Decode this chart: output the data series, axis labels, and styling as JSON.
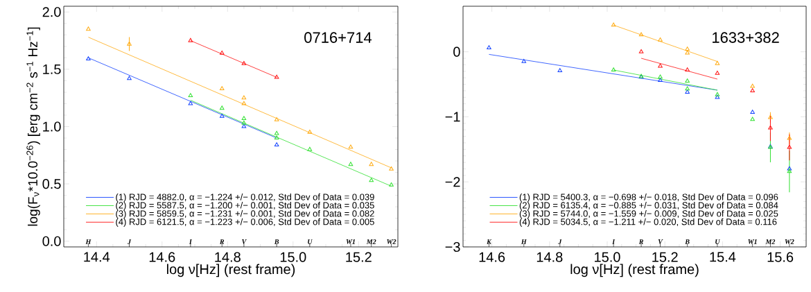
{
  "chart_data": [
    {
      "type": "scatter",
      "title": "0716+714",
      "xlabel": "log ν[Hz] (rest frame)",
      "ylabel": "log(F$_{ν}$*10.0$^{−26}$) [erg cm$^{−2}$ s$^{−1}$ Hz$^{−1}$]",
      "xlim": [
        14.3,
        15.32
      ],
      "ylim": [
        -0.05,
        2.05
      ],
      "xticks": [
        14.4,
        14.6,
        14.8,
        {
          "value": 15.0,
          "label": "15.0"
        },
        15.2
      ],
      "yticks": [
        {
          "value": 0,
          "label": "0.0"
        },
        0.5,
        {
          "value": 1,
          "label": "1.0"
        },
        1.5,
        {
          "value": 2,
          "label": "2.0"
        }
      ],
      "annotations": [
        "H",
        "J",
        "I",
        "R",
        "V",
        "B",
        "U",
        "W1",
        "M2",
        "W2"
      ],
      "legend": "bottom",
      "series": [
        {
          "type": "line",
          "marker": "none",
          "name": "(1) RJD = 4882.0, α = −1.224 +/− 0.012, Std Dev of Data = 0.039",
          "color": "#1040ff",
          "x": [
            14.375,
            14.95
          ],
          "values": [
            1.6,
            0.9
          ]
        },
        {
          "type": "line",
          "marker": "none",
          "name": "(2) RJD = 5587.5, α = −1.200 +/− 0.001, Std Dev of Data = 0.035",
          "color": "#30e030",
          "x": [
            14.687,
            15.3
          ],
          "values": [
            1.23,
            0.48
          ]
        },
        {
          "type": "line",
          "marker": "none",
          "name": "(3) RJD = 5859.5, α = −1.231 +/− 0.001, Std Dev of Data = 0.082",
          "color": "#ffaa10",
          "x": [
            14.375,
            15.3
          ],
          "values": [
            1.78,
            0.64
          ]
        },
        {
          "type": "line",
          "marker": "none",
          "name": "(4) RJD = 6121.5, α = −1.223 +/− 0.006, Std Dev of Data = 0.005",
          "color": "#ff1010",
          "x": [
            14.687,
            14.95
          ],
          "values": [
            1.75,
            1.43
          ]
        },
        {
          "marker": "triangle",
          "color": "#1040ff",
          "x": [
            14.375,
            14.5,
            14.687,
            14.783,
            14.85,
            14.95
          ],
          "values": [
            1.59,
            1.42,
            1.2,
            1.09,
            1.0,
            0.84
          ]
        },
        {
          "marker": "triangle",
          "color": "#30e030",
          "x": [
            14.687,
            14.783,
            14.85,
            14.85,
            14.95,
            14.95,
            15.051,
            15.176,
            15.239,
            15.3
          ],
          "values": [
            1.27,
            1.16,
            1.07,
            1.03,
            0.94,
            0.9,
            0.8,
            0.67,
            0.53,
            0.49
          ]
        },
        {
          "marker": "triangle",
          "color": "#ffaa10",
          "x": [
            14.375,
            14.5,
            14.783,
            14.85,
            14.85,
            14.95,
            15.051,
            15.176,
            15.239,
            15.3
          ],
          "values": [
            1.85,
            1.72,
            1.33,
            1.25,
            1.2,
            1.06,
            0.95,
            0.82,
            0.67,
            0.63
          ],
          "errors": [
            null,
            0.06,
            null,
            null,
            null,
            null,
            null,
            null,
            null,
            null
          ]
        },
        {
          "marker": "triangle",
          "color": "#ff1010",
          "x": [
            14.687,
            14.783,
            14.85,
            14.95
          ],
          "values": [
            1.75,
            1.64,
            1.55,
            1.43
          ]
        }
      ]
    },
    {
      "type": "scatter",
      "title": "1633+382",
      "xlabel": "log ν[Hz] (rest frame)",
      "xlim": [
        14.5,
        15.69
      ],
      "ylim": [
        -3.0,
        0.7
      ],
      "xticks": [
        14.6,
        14.8,
        {
          "value": 15.0,
          "label": "15.0"
        },
        15.2,
        15.4,
        15.6
      ],
      "yticks": [
        {
          "value": -3,
          "label": "−3"
        },
        {
          "value": -2,
          "label": "−2"
        },
        {
          "value": -1,
          "label": "−1"
        },
        0
      ],
      "annotations": [
        "K",
        "H",
        "J",
        "I",
        "R",
        "V",
        "B",
        "U",
        "W1",
        "M2",
        "W2"
      ],
      "legend": "bottom",
      "series": [
        {
          "type": "line",
          "marker": "none",
          "name": "(1) RJD = 5400.3, α = −0.698 +/− 0.018, Std Dev of Data = 0.096",
          "color": "#1040ff",
          "x": [
            14.59,
            15.382
          ],
          "values": [
            -0.04,
            -0.59
          ]
        },
        {
          "type": "line",
          "marker": "none",
          "name": "(2) RJD = 6135.4, α = −0.885 +/− 0.031, Std Dev of Data = 0.084",
          "color": "#30e030",
          "x": [
            15.022,
            15.382
          ],
          "values": [
            -0.28,
            -0.59
          ]
        },
        {
          "type": "line",
          "marker": "none",
          "name": "(3) RJD = 5744.0, α = −1.559 +/− 0.009, Std Dev of Data = 0.025",
          "color": "#ffaa10",
          "x": [
            15.022,
            15.382
          ],
          "values": [
            0.41,
            -0.15
          ]
        },
        {
          "type": "line",
          "marker": "none",
          "name": "(4) RJD = 5034.5, α = −1.211 +/− 0.020, Std Dev of Data = 0.116",
          "color": "#ff1010",
          "x": [
            15.118,
            15.382
          ],
          "values": [
            -0.1,
            -0.42
          ]
        },
        {
          "marker": "triangle",
          "color": "#1040ff",
          "x": [
            14.59,
            14.711,
            14.836,
            15.118,
            15.184,
            15.278,
            15.382,
            15.504,
            15.566,
            15.632
          ],
          "values": [
            0.06,
            -0.15,
            -0.29,
            -0.39,
            -0.44,
            -0.62,
            -0.7,
            -0.93,
            -1.46,
            -1.8
          ]
        },
        {
          "marker": "triangle",
          "color": "#30e030",
          "x": [
            15.022,
            15.118,
            15.184,
            15.278,
            15.278,
            15.382,
            15.504,
            15.566,
            15.632
          ],
          "values": [
            -0.28,
            -0.38,
            -0.39,
            -0.45,
            -0.57,
            -0.66,
            -1.04,
            -1.47,
            -1.84
          ],
          "errors": [
            null,
            null,
            null,
            null,
            null,
            null,
            null,
            0.23,
            0.32
          ]
        },
        {
          "marker": "triangle",
          "color": "#ffaa10",
          "x": [
            15.022,
            15.118,
            15.184,
            15.278,
            15.278,
            15.382,
            15.504,
            15.566,
            15.632
          ],
          "values": [
            0.41,
            0.26,
            0.18,
            0.04,
            -0.02,
            -0.18,
            -0.53,
            -1.01,
            -1.33
          ],
          "errors": [
            null,
            null,
            null,
            null,
            null,
            null,
            null,
            0.08,
            0.09
          ]
        },
        {
          "marker": "triangle",
          "color": "#ff1010",
          "x": [
            15.118,
            15.184,
            15.278,
            15.382,
            15.504,
            15.566,
            15.632
          ],
          "values": [
            0.0,
            -0.22,
            -0.28,
            -0.33,
            -0.6,
            -1.17,
            -1.47
          ],
          "errors": [
            null,
            null,
            null,
            null,
            null,
            0.2,
            0.2
          ]
        }
      ]
    }
  ]
}
